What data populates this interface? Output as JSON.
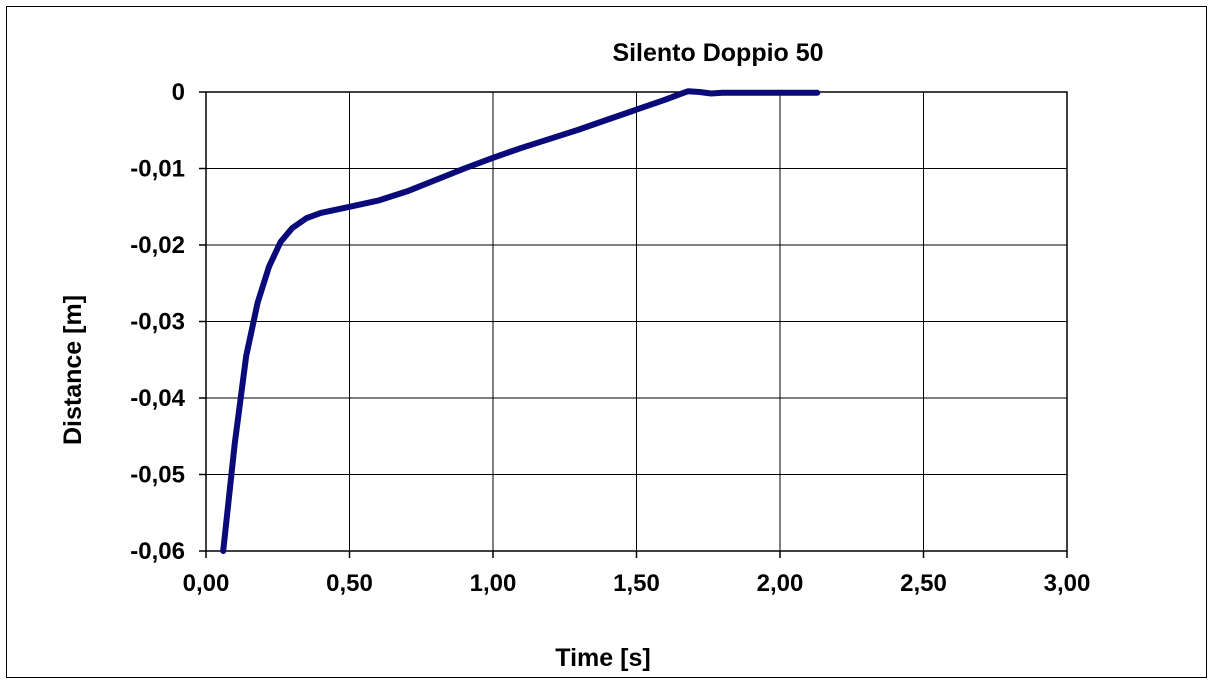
{
  "chart_data": {
    "type": "line",
    "title": "Silento Doppio 50",
    "xlabel": "Time [s]",
    "ylabel": "Distance [m]",
    "xlim": [
      0,
      3
    ],
    "ylim": [
      -0.06,
      0
    ],
    "grid": true,
    "x_ticks": [
      "0,00",
      "0,50",
      "1,00",
      "1,50",
      "2,00",
      "2,50",
      "3,00"
    ],
    "y_ticks": [
      "0",
      "-0,01",
      "-0,02",
      "-0,03",
      "-0,04",
      "-0,05",
      "-0,06"
    ],
    "series": [
      {
        "color": "#0a0a7a",
        "x": [
          0.06,
          0.1,
          0.14,
          0.18,
          0.22,
          0.26,
          0.3,
          0.35,
          0.4,
          0.5,
          0.6,
          0.7,
          0.8,
          0.9,
          1.0,
          1.1,
          1.2,
          1.3,
          1.4,
          1.5,
          1.6,
          1.65,
          1.68,
          1.72,
          1.76,
          1.8,
          1.9,
          2.0,
          2.13
        ],
        "y": [
          -0.06,
          -0.046,
          -0.0345,
          -0.0275,
          -0.0228,
          -0.0196,
          -0.0178,
          -0.0165,
          -0.0158,
          -0.015,
          -0.0142,
          -0.013,
          -0.0115,
          -0.01,
          -0.0086,
          -0.0073,
          -0.0061,
          -0.0049,
          -0.0036,
          -0.0023,
          -0.001,
          -0.0003,
          0.0001,
          0.0,
          -0.0002,
          -0.0001,
          -0.0001,
          -0.0001,
          -0.0001
        ]
      }
    ]
  }
}
